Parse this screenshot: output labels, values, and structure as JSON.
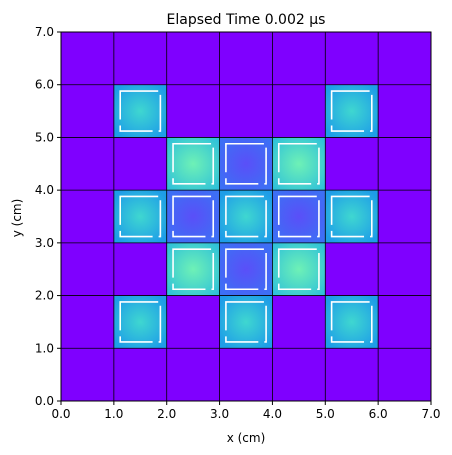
{
  "chart_data": {
    "type": "heatmap",
    "title": "Elapsed Time 0.002 μs",
    "xlabel": "x (cm)",
    "ylabel": "y (cm)",
    "xlim": [
      0.0,
      7.0
    ],
    "ylim": [
      0.0,
      7.0
    ],
    "xticks": [
      "0.0",
      "1.0",
      "2.0",
      "3.0",
      "4.0",
      "5.0",
      "6.0",
      "7.0"
    ],
    "yticks": [
      "0.0",
      "1.0",
      "2.0",
      "3.0",
      "4.0",
      "5.0",
      "6.0",
      "7.0"
    ],
    "grid": true,
    "colormap": "rainbow",
    "colors": {
      "background": "#7f00ff",
      "level_low": "#4a52f9",
      "level_mid": "#1e9de8",
      "level_high": "#48e7c4",
      "grid": "#000000",
      "boundary": "#ffffff"
    },
    "cells_note_row_order": "top-to-bottom, y from 7.0 to 0.0",
    "cells": [
      [
        0,
        0,
        0,
        0,
        0,
        0,
        0
      ],
      [
        0,
        2,
        0,
        0,
        0,
        2,
        0
      ],
      [
        0,
        0,
        3,
        1,
        3,
        0,
        0
      ],
      [
        0,
        2,
        1,
        2,
        1,
        2,
        0
      ],
      [
        0,
        0,
        3,
        1,
        3,
        0,
        0
      ],
      [
        0,
        2,
        0,
        2,
        0,
        2,
        0
      ],
      [
        0,
        0,
        0,
        0,
        0,
        0,
        0
      ]
    ]
  }
}
